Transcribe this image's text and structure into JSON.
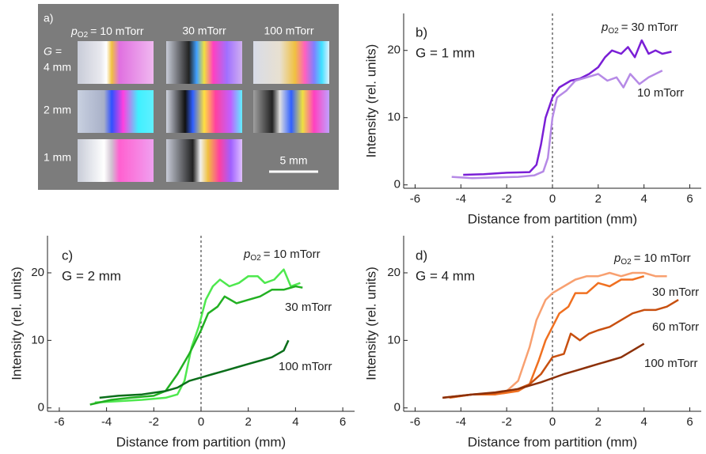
{
  "photo_panel": {
    "label": "a)",
    "pressure_symbol": "p",
    "pressure_subscript": "O2",
    "pressure_sign": "=",
    "columns": [
      "10 mTorr",
      "30 mTorr",
      "100 mTorr"
    ],
    "gap_symbol": "G =",
    "rows": [
      "4 mm",
      "2 mm",
      "1 mm"
    ],
    "scale_bar": "5 mm"
  },
  "chart_data": [
    {
      "type": "line",
      "panel_label": "b)",
      "subtitle": "G = 1 mm",
      "xlabel": "Distance from partition (mm)",
      "ylabel": "Intensity (rel. units)",
      "pressure_symbol": "p",
      "pressure_subscript": "O2",
      "pressure_sign": "=",
      "xlim": [
        -6.5,
        6.5
      ],
      "ylim": [
        -0.5,
        25.5
      ],
      "xticks": [
        -6,
        -4,
        -2,
        0,
        2,
        4,
        6
      ],
      "yticks": [
        0,
        10,
        20
      ],
      "reference_x": 0,
      "series": [
        {
          "name": "30 mTorr",
          "color": "#7a1fd6",
          "x": [
            -3.9,
            -3,
            -2,
            -1,
            -0.7,
            -0.5,
            -0.3,
            -0.1,
            0,
            0.3,
            0.8,
            1.2,
            1.6,
            2,
            2.3,
            2.6,
            3,
            3.3,
            3.6,
            3.9,
            4.2,
            4.5,
            4.8,
            5.2
          ],
          "values": [
            1.5,
            1.6,
            1.8,
            1.9,
            3,
            6,
            10,
            12,
            13,
            14.5,
            15.5,
            15.8,
            16.5,
            17.5,
            19,
            20,
            19.5,
            20.5,
            19,
            21.5,
            19.5,
            20,
            19.5,
            19.8
          ]
        },
        {
          "name": "10 mTorr",
          "color": "#b68ae6",
          "x": [
            -4.4,
            -3.5,
            -2.5,
            -1.5,
            -0.8,
            -0.4,
            -0.2,
            0,
            0.2,
            0.6,
            1,
            1.5,
            2,
            2.4,
            2.8,
            3.1,
            3.4,
            3.8,
            4.2,
            4.8
          ],
          "values": [
            1.2,
            1,
            1.1,
            1.2,
            1.4,
            2,
            4,
            10,
            13,
            14,
            15.5,
            16,
            16.5,
            15.5,
            16,
            14.5,
            16.5,
            15,
            16,
            17
          ]
        }
      ]
    },
    {
      "type": "line",
      "panel_label": "c)",
      "subtitle": "G = 2 mm",
      "xlabel": "Distance from partition (mm)",
      "ylabel": "Intensity (rel. units)",
      "pressure_symbol": "p",
      "pressure_subscript": "O2",
      "pressure_sign": "=",
      "xlim": [
        -6.5,
        6.5
      ],
      "ylim": [
        -0.5,
        25.5
      ],
      "xticks": [
        -6,
        -4,
        -2,
        0,
        2,
        4,
        6
      ],
      "yticks": [
        0,
        10,
        20
      ],
      "reference_x": 0,
      "series": [
        {
          "name": "10 mTorr",
          "color": "#4ee84e",
          "x": [
            -4.5,
            -3.5,
            -2.5,
            -1.5,
            -1,
            -0.7,
            -0.4,
            -0.1,
            0.2,
            0.5,
            0.8,
            1.2,
            1.6,
            2,
            2.4,
            2.7,
            3.1,
            3.5,
            3.8,
            4.2
          ],
          "values": [
            0.8,
            1,
            1.2,
            1.5,
            2,
            4,
            9,
            12,
            16,
            18,
            19,
            18,
            18.5,
            19.5,
            19.5,
            18.5,
            19,
            20.5,
            18,
            18.5
          ]
        },
        {
          "name": "30 mTorr",
          "color": "#22b022",
          "x": [
            -4.7,
            -3.8,
            -3,
            -2,
            -1.5,
            -1,
            -0.5,
            0,
            0.3,
            0.7,
            1,
            1.5,
            2,
            2.5,
            3,
            3.5,
            4,
            4.3
          ],
          "values": [
            0.5,
            1.2,
            1.5,
            1.8,
            2.5,
            5,
            8,
            11.5,
            14,
            15,
            16.5,
            15.5,
            16,
            16.5,
            17.5,
            17.5,
            18,
            17.8
          ]
        },
        {
          "name": "100 mTorr",
          "color": "#0a6e1a",
          "x": [
            -4.3,
            -3.5,
            -2.5,
            -1.5,
            -1,
            -0.5,
            0,
            0.5,
            1,
            1.5,
            2,
            2.5,
            3,
            3.5,
            3.7
          ],
          "values": [
            1.5,
            1.8,
            2,
            2.5,
            3,
            4,
            4.5,
            5,
            5.5,
            6,
            6.5,
            7,
            7.5,
            8.5,
            10
          ]
        }
      ]
    },
    {
      "type": "line",
      "panel_label": "d)",
      "subtitle": "G = 4 mm",
      "xlabel": "Distance from partition (mm)",
      "ylabel": "Intensity (rel. units)",
      "pressure_symbol": "p",
      "pressure_subscript": "O2",
      "pressure_sign": "=",
      "xlim": [
        -6.5,
        6.5
      ],
      "ylim": [
        -0.5,
        25.5
      ],
      "xticks": [
        -6,
        -4,
        -2,
        0,
        2,
        4,
        6
      ],
      "yticks": [
        0,
        10,
        20
      ],
      "reference_x": 0,
      "series": [
        {
          "name": "10 mTorr",
          "color": "#f8a070",
          "x": [
            -4.5,
            -3.5,
            -2.5,
            -2,
            -1.5,
            -1,
            -0.7,
            -0.3,
            0,
            0.5,
            1,
            1.5,
            2,
            2.5,
            3,
            3.5,
            4,
            4.5,
            5
          ],
          "values": [
            1.5,
            2,
            2,
            2.5,
            4,
            9,
            13,
            16,
            17,
            18,
            19,
            19.5,
            19.5,
            20,
            19.5,
            20,
            20,
            19.5,
            19.5
          ]
        },
        {
          "name": "30 mTorr",
          "color": "#f07020",
          "x": [
            -4.5,
            -3.5,
            -2.5,
            -1.5,
            -1,
            -0.6,
            -0.3,
            0,
            0.3,
            0.7,
            1,
            1.5,
            2,
            2.5,
            3,
            3.5,
            4
          ],
          "values": [
            1.5,
            2,
            2,
            2.5,
            3.5,
            7,
            10,
            12,
            14,
            15,
            17,
            17,
            18.5,
            18,
            19,
            19,
            19.5
          ]
        },
        {
          "name": "60 mTorr",
          "color": "#c85010",
          "x": [
            -4.8,
            -3.5,
            -2.5,
            -1.5,
            -1,
            -0.5,
            0,
            0.5,
            0.8,
            1.2,
            1.6,
            2,
            2.5,
            3,
            3.5,
            4,
            4.5,
            5,
            5.5
          ],
          "values": [
            1.5,
            2,
            2.2,
            2.8,
            3.5,
            5,
            7.5,
            8,
            11,
            10,
            11,
            11.5,
            12,
            13,
            14,
            14.5,
            14.5,
            15,
            16
          ]
        },
        {
          "name": "100 mTorr",
          "color": "#8c3008",
          "x": [
            -4.8,
            -3.5,
            -2.5,
            -1.5,
            -0.5,
            0.5,
            1,
            1.5,
            2,
            2.5,
            3,
            3.5,
            4
          ],
          "values": [
            1.5,
            2,
            2.3,
            2.8,
            3.8,
            5,
            5.5,
            6,
            6.5,
            7,
            7.5,
            8.5,
            9.5
          ]
        }
      ]
    }
  ]
}
